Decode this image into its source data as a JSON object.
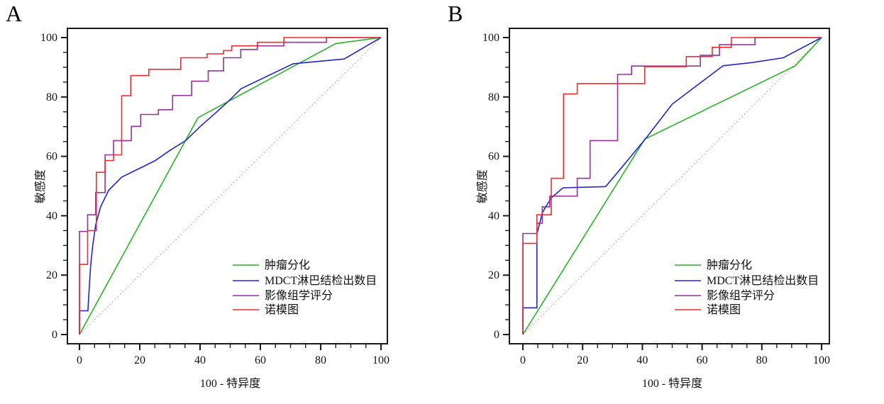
{
  "figure": {
    "background": "#ffffff",
    "axis_color": "#1b1b1b",
    "text_color": "#111111"
  },
  "chart_data": [
    {
      "type": "line",
      "panel_label": "A",
      "title": "",
      "xlabel": "100 - 特异度",
      "ylabel": "敏感度",
      "xlim": [
        0,
        100
      ],
      "ylim": [
        0,
        100
      ],
      "x_ticks": [
        "0",
        "20",
        "40",
        "60",
        "80",
        "100"
      ],
      "y_ticks": [
        "0",
        "20",
        "40",
        "60",
        "80",
        "100"
      ],
      "minor_tick_step": 5,
      "grid": false,
      "legend_position": "lower-right",
      "reference_diagonal": {
        "from": [
          0,
          0
        ],
        "to": [
          100,
          100
        ],
        "style": "dotted",
        "color": "#c49e9e"
      },
      "series": [
        {
          "name": "肿瘤分化",
          "color": "#28b428",
          "curve": "linear",
          "points": [
            [
              0,
              0
            ],
            [
              39.3,
              73
            ],
            [
              85,
              98
            ],
            [
              100,
              100
            ]
          ]
        },
        {
          "name": "MDCT淋巴结检出数目",
          "color": "#2323cd",
          "curve": "linear",
          "points": [
            [
              0,
              0
            ],
            [
              0,
              8
            ],
            [
              2.8,
              8
            ],
            [
              3.2,
              15
            ],
            [
              3.7,
              23
            ],
            [
              4.4,
              30
            ],
            [
              5.4,
              37
            ],
            [
              7,
              43
            ],
            [
              9.7,
              48.6
            ],
            [
              14,
              53
            ],
            [
              20,
              56
            ],
            [
              25,
              58.5
            ],
            [
              30,
              62
            ],
            [
              35.2,
              65.3
            ],
            [
              40,
              70
            ],
            [
              45,
              74.5
            ],
            [
              49.7,
              78.8
            ],
            [
              53.6,
              82.8
            ],
            [
              70.9,
              91.2
            ],
            [
              87.8,
              92.8
            ],
            [
              100,
              100
            ]
          ]
        },
        {
          "name": "影像组学评分",
          "color": "#96309b",
          "curve": "step",
          "points": [
            [
              0,
              0
            ],
            [
              0,
              34.7
            ],
            [
              2.7,
              34.7
            ],
            [
              2.7,
              40.3
            ],
            [
              5.4,
              40.3
            ],
            [
              5.4,
              47.8
            ],
            [
              8.5,
              47.8
            ],
            [
              8.5,
              60.5
            ],
            [
              11.3,
              60.5
            ],
            [
              11.3,
              65.3
            ],
            [
              17.2,
              65.3
            ],
            [
              17.2,
              70.1
            ],
            [
              20.3,
              70.1
            ],
            [
              20.3,
              74.1
            ],
            [
              26.2,
              74.1
            ],
            [
              26.2,
              75.7
            ],
            [
              30.9,
              75.7
            ],
            [
              30.9,
              80.5
            ],
            [
              37.2,
              80.5
            ],
            [
              37.2,
              85.3
            ],
            [
              42.7,
              85.3
            ],
            [
              42.7,
              88.8
            ],
            [
              47.8,
              88.8
            ],
            [
              47.8,
              93.2
            ],
            [
              53.5,
              93.2
            ],
            [
              53.5,
              96
            ],
            [
              59,
              96
            ],
            [
              59,
              97.2
            ],
            [
              67.8,
              97.2
            ],
            [
              67.8,
              98.4
            ],
            [
              81.9,
              98.4
            ],
            [
              81.9,
              100
            ],
            [
              100,
              100
            ]
          ]
        },
        {
          "name": "诺模图",
          "color": "#e92f2f",
          "curve": "step",
          "points": [
            [
              0,
              0
            ],
            [
              0,
              23.6
            ],
            [
              2.7,
              23.6
            ],
            [
              2.7,
              35
            ],
            [
              5.6,
              35
            ],
            [
              5.6,
              54.6
            ],
            [
              8.5,
              54.6
            ],
            [
              8.5,
              58.6
            ],
            [
              11.3,
              58.6
            ],
            [
              11.3,
              60.5
            ],
            [
              14,
              60.5
            ],
            [
              14,
              80.4
            ],
            [
              17,
              80.4
            ],
            [
              17,
              87.2
            ],
            [
              23,
              87.2
            ],
            [
              23,
              89.3
            ],
            [
              33.6,
              89.3
            ],
            [
              33.6,
              93.2
            ],
            [
              42.3,
              93.2
            ],
            [
              42.3,
              94.5
            ],
            [
              47.8,
              94.5
            ],
            [
              47.8,
              95.6
            ],
            [
              50.5,
              95.6
            ],
            [
              50.5,
              97.2
            ],
            [
              59,
              97.2
            ],
            [
              59,
              98.4
            ],
            [
              67.8,
              98.4
            ],
            [
              67.8,
              100
            ],
            [
              100,
              100
            ]
          ]
        }
      ]
    },
    {
      "type": "line",
      "panel_label": "B",
      "title": "",
      "xlabel": "100 - 特异度",
      "ylabel": "敏感度",
      "xlim": [
        0,
        100
      ],
      "ylim": [
        0,
        100
      ],
      "x_ticks": [
        "0",
        "20",
        "40",
        "60",
        "80",
        "100"
      ],
      "y_ticks": [
        "0",
        "20",
        "40",
        "60",
        "80",
        "100"
      ],
      "minor_tick_step": 5,
      "grid": false,
      "legend_position": "lower-right",
      "reference_diagonal": {
        "from": [
          0,
          0
        ],
        "to": [
          100,
          100
        ],
        "style": "dotted",
        "color": "#c49e9e"
      },
      "series": [
        {
          "name": "肿瘤分化",
          "color": "#28b428",
          "curve": "linear",
          "points": [
            [
              0,
              0
            ],
            [
              40.8,
              65.8
            ],
            [
              91.2,
              90.5
            ],
            [
              100,
              100
            ]
          ]
        },
        {
          "name": "MDCT淋巴结检出数目",
          "color": "#2323cd",
          "curve": "linear",
          "points": [
            [
              0,
              0
            ],
            [
              0,
              9
            ],
            [
              4.7,
              9
            ],
            [
              4.7,
              34
            ],
            [
              5.5,
              37
            ],
            [
              6.5,
              41
            ],
            [
              7.9,
              43.4
            ],
            [
              9.5,
              46
            ],
            [
              13.4,
              49.4
            ],
            [
              27.7,
              49.8
            ],
            [
              31.7,
              54.6
            ],
            [
              41.2,
              66.1
            ],
            [
              50,
              77.6
            ],
            [
              67,
              90.5
            ],
            [
              76.9,
              91.6
            ],
            [
              87.2,
              93.2
            ],
            [
              100,
              100
            ]
          ]
        },
        {
          "name": "影像组学评分",
          "curve": "step",
          "color": "#96309b",
          "points": [
            [
              0,
              0
            ],
            [
              0,
              34
            ],
            [
              4.7,
              34
            ],
            [
              4.7,
              37.5
            ],
            [
              6.5,
              37.5
            ],
            [
              6.5,
              43
            ],
            [
              9,
              43
            ],
            [
              9,
              46.6
            ],
            [
              18.2,
              46.6
            ],
            [
              18.2,
              52.6
            ],
            [
              22.5,
              52.6
            ],
            [
              22.5,
              65.3
            ],
            [
              31.7,
              65.3
            ],
            [
              31.7,
              87.6
            ],
            [
              36.4,
              87.6
            ],
            [
              36.4,
              90.4
            ],
            [
              59.4,
              90.4
            ],
            [
              59.4,
              94
            ],
            [
              65.8,
              94
            ],
            [
              65.8,
              97.6
            ],
            [
              77.7,
              97.6
            ],
            [
              77.7,
              100
            ],
            [
              100,
              100
            ]
          ]
        },
        {
          "name": "诺模图",
          "curve": "step",
          "color": "#e92f2f",
          "points": [
            [
              0,
              0
            ],
            [
              0,
              30.7
            ],
            [
              4.7,
              30.7
            ],
            [
              4.7,
              40.3
            ],
            [
              9.5,
              40.3
            ],
            [
              9.5,
              52.6
            ],
            [
              13.6,
              52.6
            ],
            [
              13.6,
              81
            ],
            [
              18.2,
              81
            ],
            [
              18.2,
              84.5
            ],
            [
              40.8,
              84.5
            ],
            [
              40.8,
              90.2
            ],
            [
              54.7,
              90.2
            ],
            [
              54.7,
              93.6
            ],
            [
              63.4,
              93.6
            ],
            [
              63.4,
              96.7
            ],
            [
              69.8,
              96.7
            ],
            [
              69.8,
              100
            ],
            [
              100,
              100
            ]
          ]
        }
      ]
    }
  ]
}
